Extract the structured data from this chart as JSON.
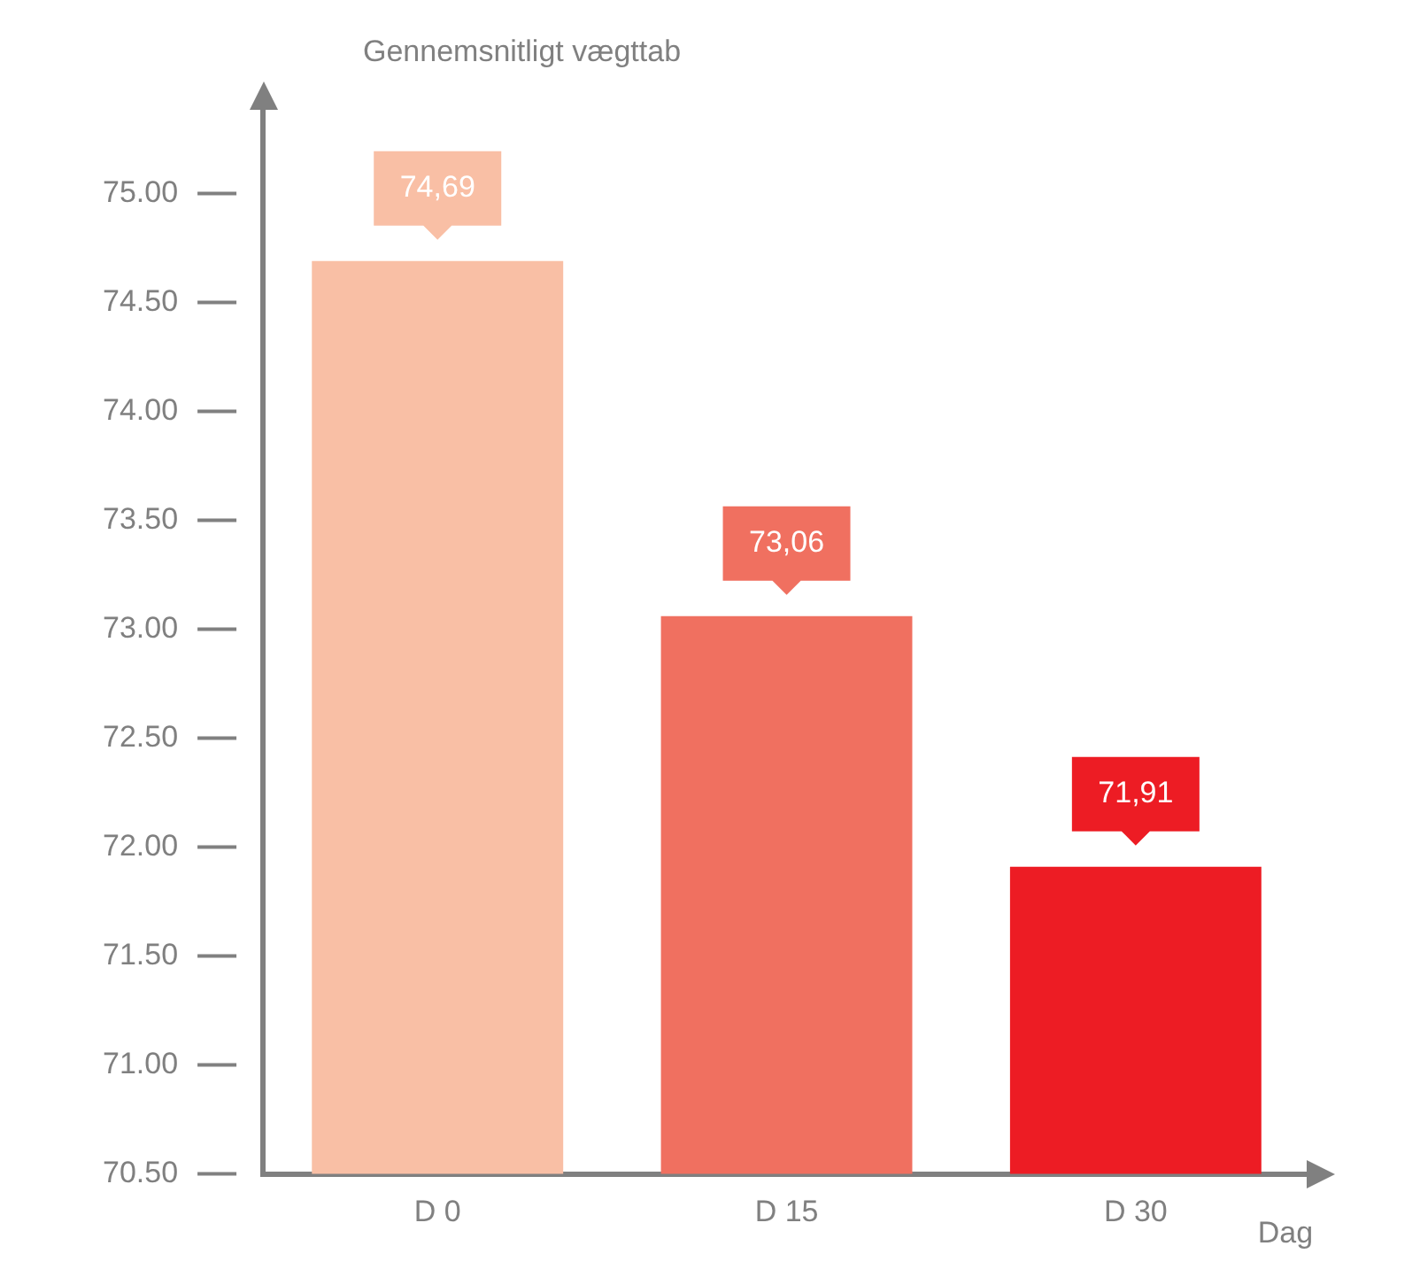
{
  "chart_data": {
    "type": "bar",
    "ylabel": "Gennemsnitligt vægttab",
    "xlabel": "Dag",
    "categories": [
      "D 0",
      "D 15",
      "D 30"
    ],
    "values": [
      74.69,
      73.06,
      71.91
    ],
    "colors": [
      "#f9bfa5",
      "#f07060",
      "#ed1c24"
    ],
    "value_labels": [
      "74,69",
      "73,06",
      "71,91"
    ],
    "ylim": [
      70.5,
      75.4
    ],
    "yticks": [
      {
        "value": 70.5,
        "label": "70.50"
      },
      {
        "value": 71,
        "label": "71.00"
      },
      {
        "value": 71.5,
        "label": "71.50"
      },
      {
        "value": 72,
        "label": "72.00"
      },
      {
        "value": 72.5,
        "label": "72.50"
      },
      {
        "value": 73,
        "label": "73.00"
      },
      {
        "value": 73.5,
        "label": "73.50"
      },
      {
        "value": 74,
        "label": "74.00"
      },
      {
        "value": 74.5,
        "label": "74.50"
      },
      {
        "value": 75,
        "label": "75.00"
      }
    ],
    "grid": false,
    "legend": false
  }
}
